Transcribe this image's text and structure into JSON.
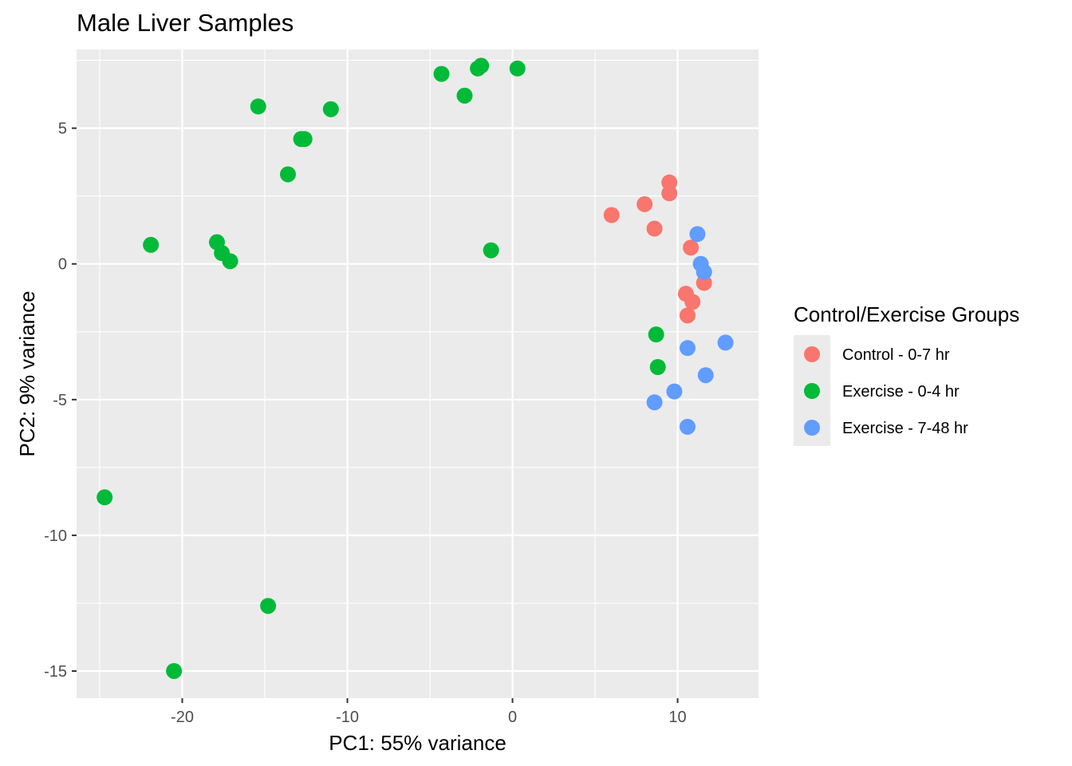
{
  "chart_data": {
    "type": "scatter",
    "title": "Male Liver Samples",
    "xlabel": "PC1: 55% variance",
    "ylabel": "PC2: 9% variance",
    "xlim": [
      -26.4,
      14.9
    ],
    "ylim": [
      -16.0,
      7.9
    ],
    "x_ticks": [
      -20,
      -10,
      0,
      10
    ],
    "y_ticks": [
      5,
      0,
      -5,
      -10,
      -15
    ],
    "grid": true,
    "legend": {
      "title": "Control/Exercise Groups",
      "position": "right"
    },
    "series": [
      {
        "name": "Control - 0-7 hr",
        "color": "#F8766D",
        "points": [
          [
            6.0,
            1.8
          ],
          [
            8.0,
            2.2
          ],
          [
            8.6,
            1.3
          ],
          [
            9.5,
            3.0
          ],
          [
            9.5,
            2.6
          ],
          [
            10.8,
            0.6
          ],
          [
            11.6,
            -0.7
          ],
          [
            10.5,
            -1.1
          ],
          [
            10.9,
            -1.4
          ],
          [
            10.6,
            -1.9
          ]
        ]
      },
      {
        "name": "Exercise - 0-4 hr",
        "color": "#00BA38",
        "points": [
          [
            -15.4,
            5.8
          ],
          [
            -11.0,
            5.7
          ],
          [
            -12.8,
            4.6
          ],
          [
            -12.6,
            4.6
          ],
          [
            -13.6,
            3.3
          ],
          [
            -4.3,
            7.0
          ],
          [
            -2.9,
            6.2
          ],
          [
            -2.1,
            7.2
          ],
          [
            -1.9,
            7.3
          ],
          [
            0.3,
            7.2
          ],
          [
            -21.9,
            0.7
          ],
          [
            -17.9,
            0.8
          ],
          [
            -17.6,
            0.4
          ],
          [
            -17.1,
            0.1
          ],
          [
            -1.3,
            0.5
          ],
          [
            8.7,
            -2.6
          ],
          [
            8.8,
            -3.8
          ],
          [
            -24.7,
            -8.6
          ],
          [
            -14.8,
            -12.6
          ],
          [
            -20.5,
            -15.0
          ]
        ]
      },
      {
        "name": "Exercise - 7-48 hr",
        "color": "#619CFF",
        "points": [
          [
            11.2,
            1.1
          ],
          [
            11.4,
            0.0
          ],
          [
            11.6,
            -0.3
          ],
          [
            12.9,
            -2.9
          ],
          [
            10.6,
            -3.1
          ],
          [
            11.7,
            -4.1
          ],
          [
            9.8,
            -4.7
          ],
          [
            8.6,
            -5.1
          ],
          [
            10.6,
            -6.0
          ]
        ]
      }
    ]
  }
}
